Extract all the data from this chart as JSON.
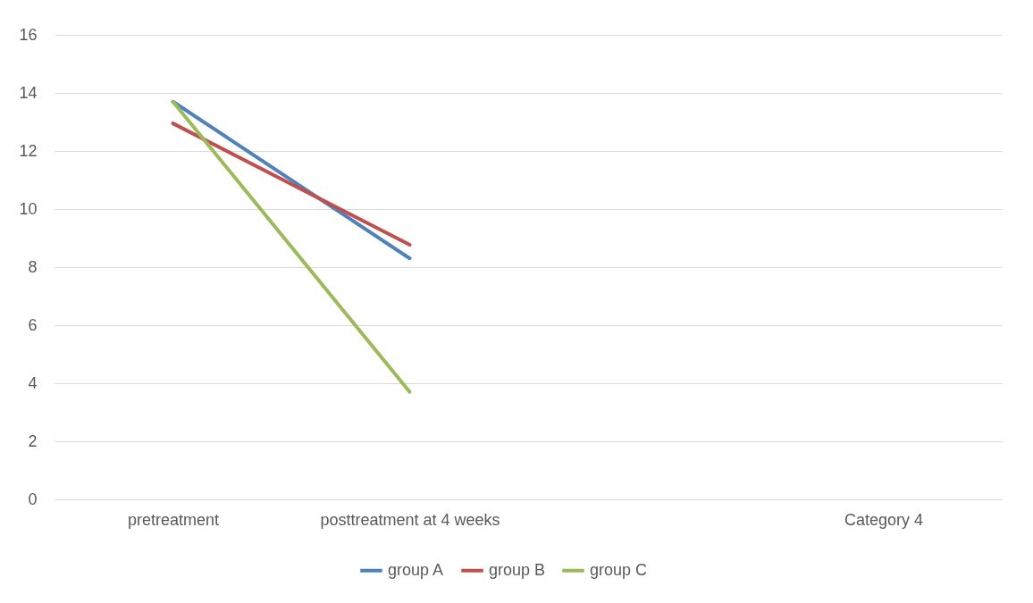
{
  "chart_data": {
    "type": "line",
    "categories": [
      "pretreatment",
      "posttreatment at 4 weeks",
      null,
      "Category 4"
    ],
    "series": [
      {
        "name": "group A",
        "color": "#4f81bd",
        "values": [
          13.7,
          8.3,
          null,
          null
        ]
      },
      {
        "name": "group B",
        "color": "#c0504d",
        "values": [
          12.95,
          8.77,
          null,
          null
        ]
      },
      {
        "name": "group C",
        "color": "#9bbb59",
        "values": [
          13.7,
          3.7,
          null,
          null
        ]
      }
    ],
    "ylim": [
      0,
      16
    ],
    "yticks": [
      0,
      2,
      4,
      6,
      8,
      10,
      12,
      14,
      16
    ],
    "grid": "y",
    "legend": "bottom",
    "marker": "none",
    "line_style": "solid"
  }
}
